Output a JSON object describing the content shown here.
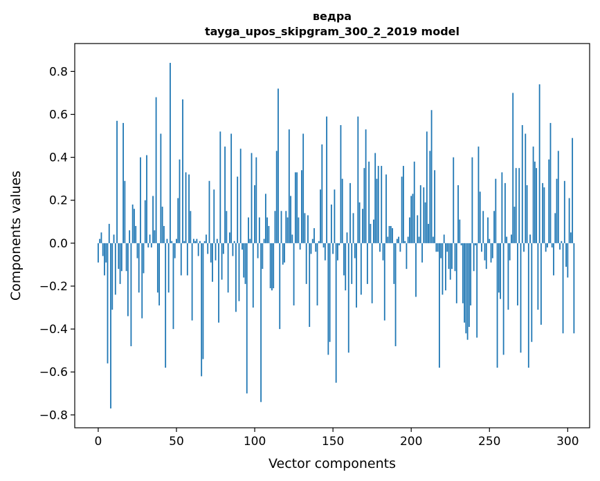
{
  "chart_data": {
    "type": "bar",
    "title": "ведра",
    "subtitle": "tayga_upos_skipgram_300_2_2019 model",
    "xlabel": "Vector components",
    "ylabel": "Components values",
    "xlim": [
      -15,
      314
    ],
    "ylim": [
      -0.86,
      0.93
    ],
    "x_ticks": [
      0,
      50,
      100,
      150,
      200,
      250,
      300
    ],
    "x_tick_labels": [
      "0",
      "50",
      "100",
      "150",
      "200",
      "250",
      "300"
    ],
    "y_ticks": [
      -0.8,
      -0.6,
      -0.4,
      -0.2,
      0.0,
      0.2,
      0.4,
      0.6,
      0.8
    ],
    "y_tick_labels": [
      "−0.8",
      "−0.6",
      "−0.4",
      "−0.2",
      "0.0",
      "0.2",
      "0.4",
      "0.6",
      "0.8"
    ],
    "bar_color": "#1f77b4",
    "grid": false,
    "values": [
      -0.09,
      0.02,
      0.05,
      -0.06,
      -0.15,
      -0.09,
      -0.56,
      0.09,
      -0.77,
      -0.31,
      0.04,
      -0.24,
      0.57,
      -0.12,
      -0.19,
      -0.13,
      0.56,
      0.29,
      -0.13,
      -0.34,
      0.06,
      -0.48,
      0.18,
      0.16,
      0.08,
      -0.07,
      -0.23,
      0.4,
      -0.35,
      -0.14,
      0.2,
      0.41,
      -0.02,
      0.04,
      -0.02,
      0.22,
      0.06,
      0.68,
      -0.23,
      -0.29,
      0.51,
      0.17,
      0.08,
      -0.58,
      0.02,
      -0.23,
      0.84,
      0.01,
      -0.4,
      -0.07,
      0.02,
      0.21,
      0.39,
      -0.15,
      0.67,
      0.01,
      0.33,
      -0.15,
      0.32,
      0.15,
      -0.36,
      0.02,
      0.01,
      0.02,
      -0.06,
      0.01,
      -0.62,
      -0.54,
      0.01,
      0.04,
      -0.05,
      0.29,
      -0.09,
      -0.18,
      0.25,
      -0.08,
      0.02,
      -0.37,
      0.52,
      -0.17,
      -0.05,
      0.45,
      0.15,
      -0.23,
      0.05,
      0.51,
      -0.06,
      0.01,
      -0.32,
      0.31,
      -0.27,
      0.44,
      -0.03,
      -0.16,
      -0.19,
      -0.7,
      0.12,
      0.02,
      0.42,
      -0.3,
      0.27,
      0.4,
      -0.07,
      0.12,
      -0.74,
      -0.12,
      0.02,
      0.23,
      0.12,
      0.08,
      -0.21,
      -0.22,
      -0.21,
      0.15,
      0.43,
      0.72,
      -0.4,
      0.15,
      -0.1,
      -0.09,
      0.15,
      0.12,
      0.53,
      0.22,
      0.04,
      -0.29,
      0.33,
      0.33,
      0.12,
      -0.03,
      0.34,
      0.51,
      0.14,
      -0.19,
      0.13,
      -0.39,
      -0.05,
      0.02,
      0.07,
      -0.04,
      -0.29,
      0.01,
      0.25,
      0.46,
      -0.02,
      -0.08,
      0.59,
      -0.52,
      -0.46,
      0.18,
      -0.05,
      0.25,
      -0.65,
      -0.08,
      -0.01,
      0.55,
      0.3,
      -0.15,
      -0.22,
      0.05,
      -0.51,
      0.28,
      -0.19,
      0.14,
      -0.07,
      -0.3,
      0.59,
      0.19,
      -0.24,
      0.16,
      0.35,
      0.53,
      -0.19,
      0.38,
      0.09,
      -0.28,
      0.11,
      0.42,
      0.3,
      0.36,
      -0.04,
      0.36,
      -0.08,
      -0.36,
      0.32,
      0.03,
      0.08,
      0.08,
      0.07,
      -0.19,
      -0.48,
      0.02,
      0.03,
      -0.04,
      0.31,
      0.36,
      0.01,
      -0.12,
      0.03,
      0.12,
      0.22,
      0.23,
      0.38,
      -0.25,
      0.13,
      0.03,
      0.27,
      -0.09,
      0.26,
      0.19,
      0.52,
      0.09,
      0.43,
      0.62,
      0.03,
      0.34,
      -0.04,
      -0.04,
      -0.58,
      -0.07,
      -0.24,
      0.04,
      -0.22,
      -0.04,
      -0.12,
      -0.17,
      -0.12,
      0.4,
      -0.13,
      -0.28,
      0.27,
      0.11,
      -0.01,
      -0.28,
      -0.37,
      -0.42,
      -0.45,
      -0.39,
      -0.29,
      0.4,
      -0.13,
      -0.01,
      -0.44,
      0.45,
      0.24,
      -0.04,
      0.15,
      -0.08,
      -0.12,
      0.12,
      0.02,
      -0.09,
      -0.07,
      0.15,
      0.3,
      -0.58,
      -0.23,
      -0.26,
      0.33,
      -0.52,
      0.28,
      0.03,
      -0.31,
      -0.08,
      0.04,
      0.7,
      0.17,
      0.35,
      -0.29,
      0.35,
      -0.51,
      0.55,
      -0.04,
      0.51,
      0.27,
      -0.58,
      0.04,
      -0.46,
      0.45,
      0.38,
      0.35,
      -0.31,
      0.74,
      -0.38,
      0.28,
      0.26,
      -0.04,
      -0.02,
      0.39,
      0.56,
      -0.02,
      -0.15,
      0.14,
      0.3,
      0.43,
      -0.03,
      0.01,
      -0.42,
      0.29,
      -0.11,
      -0.16,
      0.21,
      0.05,
      0.49,
      -0.42
    ]
  }
}
